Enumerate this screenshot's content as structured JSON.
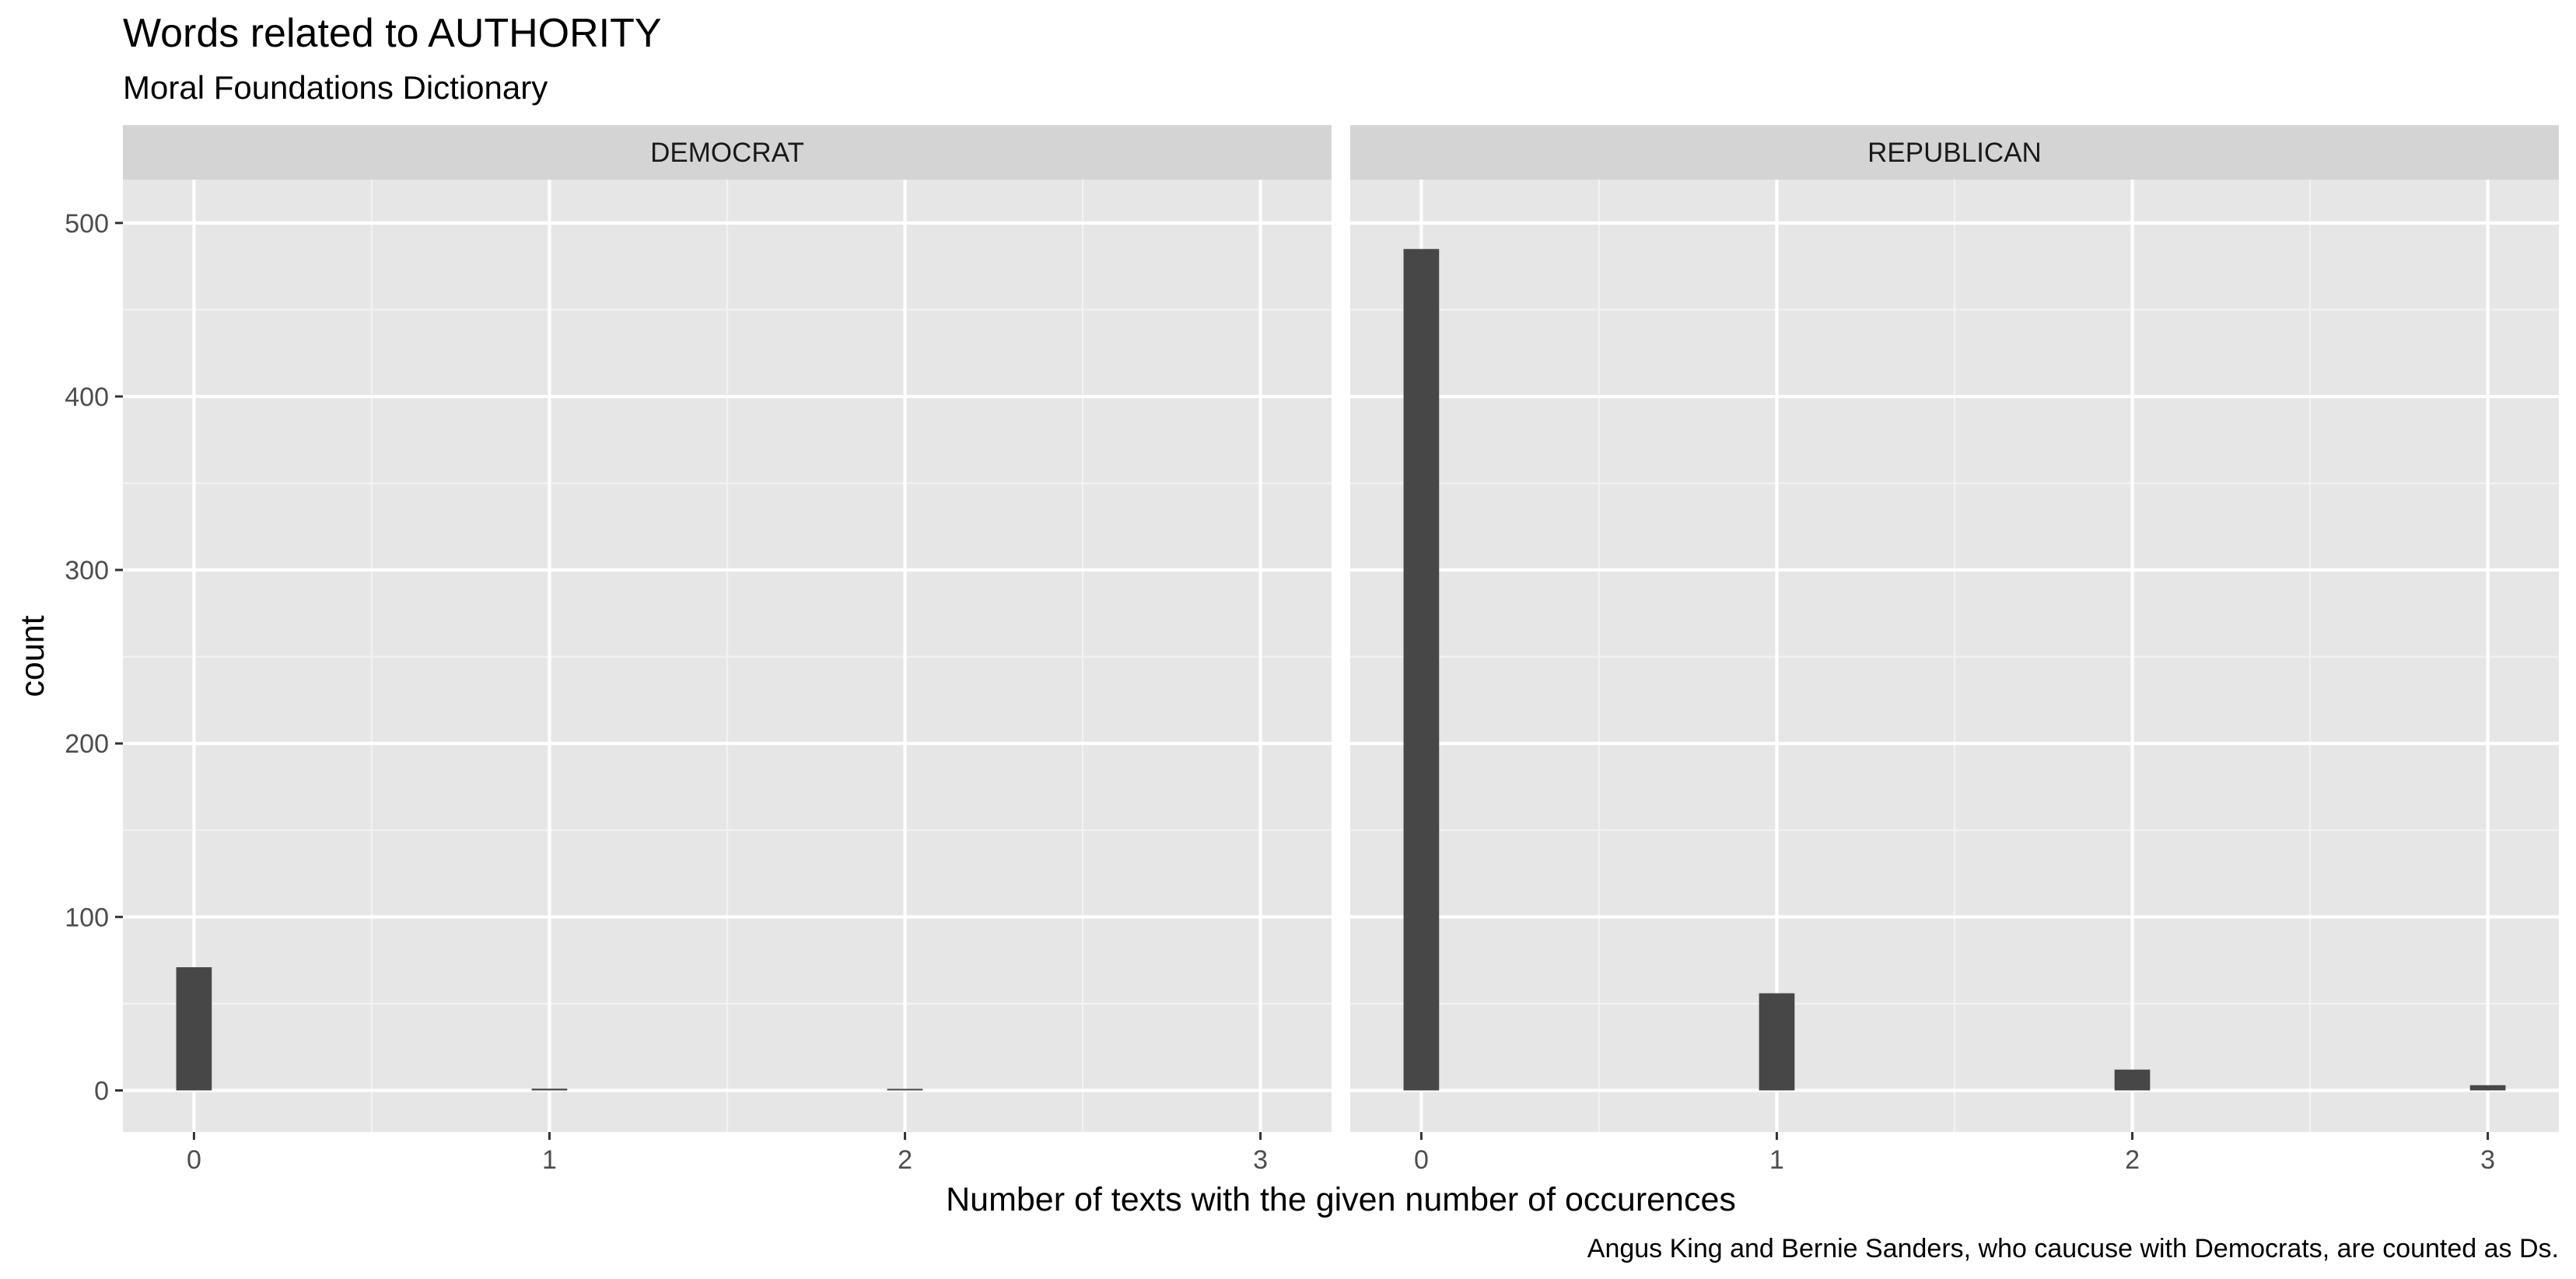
{
  "chart_data": {
    "type": "bar",
    "title": "Words related to AUTHORITY",
    "subtitle": "Moral Foundations Dictionary",
    "caption": "Angus King and Bernie Sanders, who caucuse with Democrats, are counted as Ds.",
    "xlabel": "Number of texts with the given number of occurences",
    "ylabel": "count",
    "xticks": [
      "0",
      "1",
      "2",
      "3"
    ],
    "yticks": [
      "0",
      "100",
      "200",
      "300",
      "400",
      "500"
    ],
    "xlim": [
      -0.2,
      3.2
    ],
    "ylim": [
      -24,
      525
    ],
    "grid": true,
    "bar_color": "#474747",
    "panel_color": "#e6e6e6",
    "strip_color": "#d4d4d4",
    "panels": [
      {
        "name": "DEMOCRAT",
        "bars": [
          {
            "x": 0,
            "value": 71
          },
          {
            "x": 1,
            "value": 1
          },
          {
            "x": 2,
            "value": 0.5
          }
        ]
      },
      {
        "name": "REPUBLICAN",
        "bars": [
          {
            "x": 0,
            "value": 485
          },
          {
            "x": 1,
            "value": 56
          },
          {
            "x": 2,
            "value": 12
          },
          {
            "x": 3,
            "value": 3
          }
        ]
      }
    ]
  }
}
